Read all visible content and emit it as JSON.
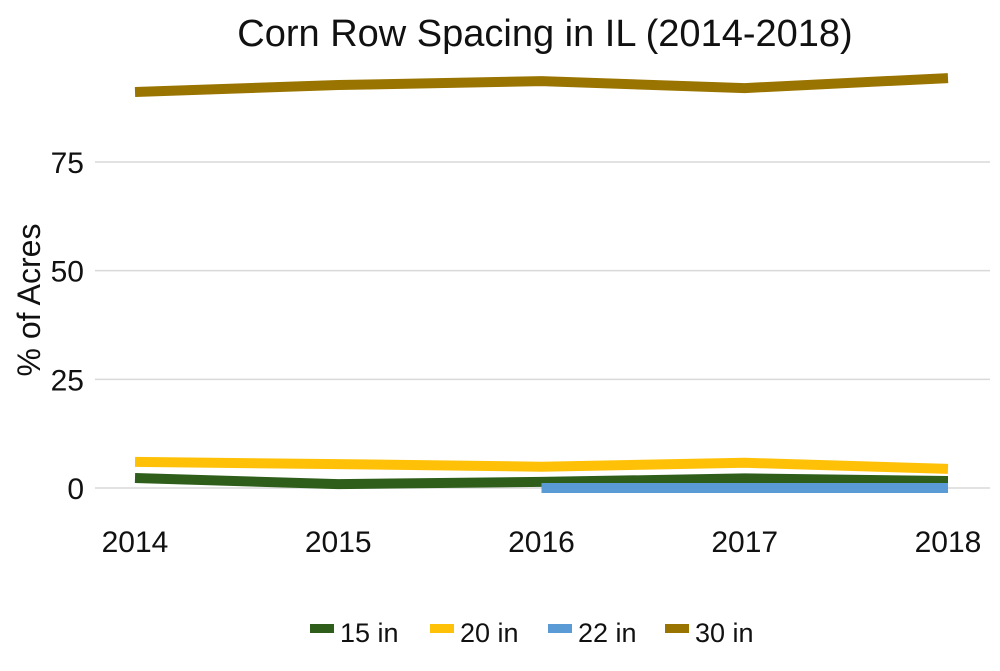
{
  "chart_data": {
    "type": "line",
    "title": "Corn Row Spacing in IL (2014-2018)",
    "xlabel": "",
    "ylabel": "% of Acres",
    "x": [
      2014,
      2015,
      2016,
      2017,
      2018
    ],
    "x_tick_labels": [
      "2014",
      "2015",
      "2016",
      "2017",
      "2018"
    ],
    "y_ticks": [
      0,
      25,
      50,
      75
    ],
    "y_tick_labels": [
      "0",
      "25",
      "50",
      "75"
    ],
    "ylim": [
      0,
      100
    ],
    "grid": "horizontal",
    "legend_position": "bottom",
    "series": [
      {
        "name": "15 in",
        "color": "#2e5e1a",
        "values": [
          2.3,
          0.9,
          1.4,
          2.2,
          1.6
        ]
      },
      {
        "name": "20 in",
        "color": "#ffc107",
        "values": [
          6.0,
          5.5,
          4.9,
          5.8,
          4.4
        ]
      },
      {
        "name": "22 in",
        "color": "#5b9bd5",
        "values": [
          null,
          null,
          0,
          0,
          0
        ]
      },
      {
        "name": "30 in",
        "color": "#9a7400",
        "values": [
          91.1,
          92.7,
          93.6,
          92.0,
          94.3
        ]
      }
    ]
  }
}
